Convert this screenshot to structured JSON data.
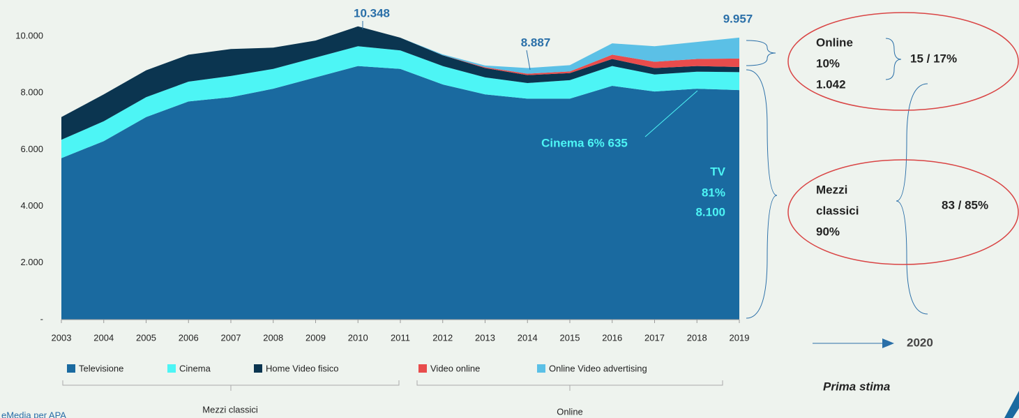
{
  "chart_data": {
    "type": "stacked_area",
    "categories": [
      "2003",
      "2004",
      "2005",
      "2006",
      "2007",
      "2008",
      "2009",
      "2010",
      "2011",
      "2012",
      "2013",
      "2014",
      "2015",
      "2016",
      "2017",
      "2018",
      "2019"
    ],
    "series": [
      {
        "name": "Televisione",
        "color": "#1a6aa0",
        "values": [
          5700,
          6300,
          7150,
          7700,
          7850,
          8150,
          8550,
          8950,
          8850,
          8300,
          7950,
          7800,
          7800,
          8250,
          8050,
          8150,
          8100
        ]
      },
      {
        "name": "Cinema",
        "color": "#4df5f5",
        "values": [
          650,
          700,
          700,
          700,
          750,
          700,
          700,
          700,
          650,
          650,
          600,
          550,
          650,
          700,
          600,
          600,
          635
        ]
      },
      {
        "name": "Home Video fisico",
        "color": "#0b3550",
        "values": [
          800,
          950,
          950,
          950,
          950,
          750,
          600,
          700,
          450,
          380,
          330,
          280,
          250,
          250,
          230,
          200,
          180
        ]
      },
      {
        "name": "Video online",
        "color": "#e84c4c",
        "values": [
          0,
          0,
          0,
          0,
          0,
          0,
          0,
          0,
          0,
          0,
          30,
          50,
          60,
          150,
          220,
          250,
          300
        ]
      },
      {
        "name": "Online Video advertising",
        "color": "#5bc0e6",
        "values": [
          0,
          0,
          0,
          0,
          0,
          0,
          0,
          0,
          0,
          30,
          60,
          200,
          220,
          400,
          550,
          600,
          740
        ]
      }
    ],
    "ylim": [
      0,
      10000
    ],
    "yticks": [
      {
        "value": 0,
        "label": "-"
      },
      {
        "value": 2000,
        "label": "2.000"
      },
      {
        "value": 4000,
        "label": "4.000"
      },
      {
        "value": 6000,
        "label": "6.000"
      },
      {
        "value": 8000,
        "label": "8.000"
      },
      {
        "value": 10000,
        "label": "10.000"
      }
    ],
    "annotations": {
      "peak": "10.348",
      "low": "8.887",
      "last": "9.957",
      "cinema": "Cinema 6% 635",
      "tv": [
        "TV",
        "81%",
        "8.100"
      ],
      "online": [
        "Online",
        "10%",
        "1.042"
      ],
      "online_range": "15 / 17%",
      "classici": [
        "Mezzi",
        "classici",
        "90%"
      ],
      "classici_range": "83 / 85%",
      "year": "2020",
      "estimate": "Prima stima",
      "group_classici": "Mezzi  classici",
      "group_online": "Online",
      "source": "eMedia per APA"
    }
  }
}
